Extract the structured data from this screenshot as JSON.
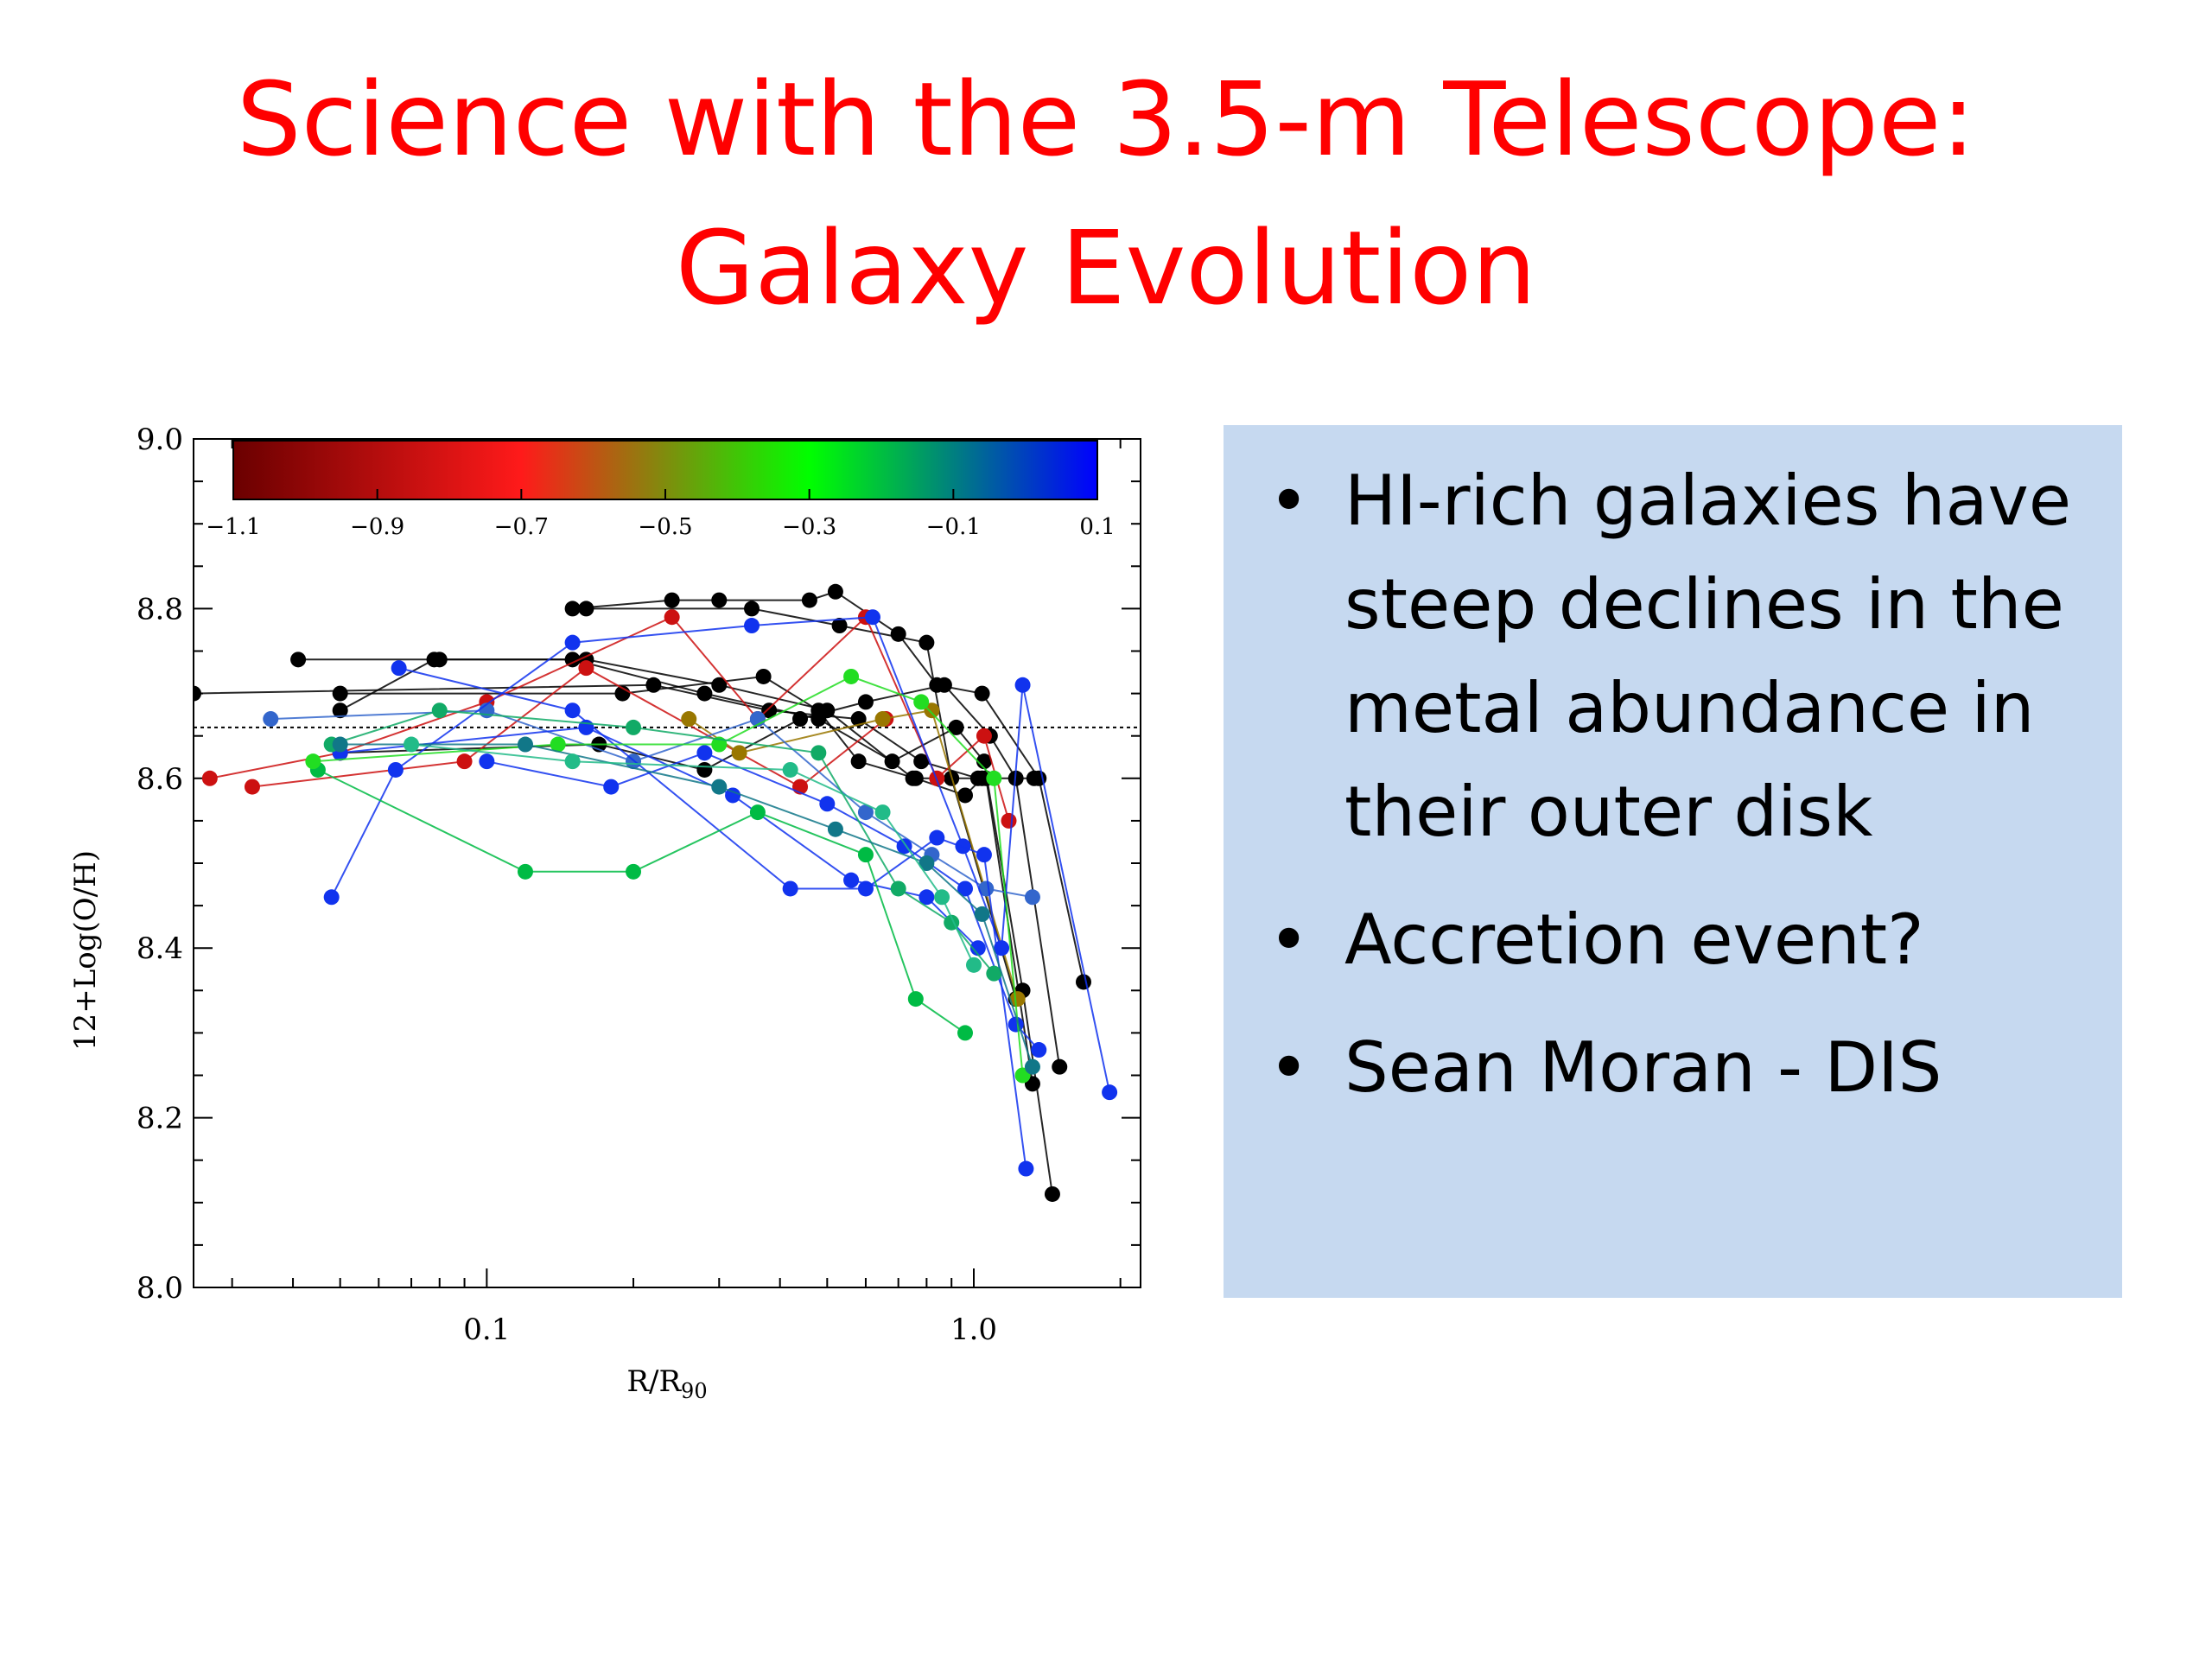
{
  "slide": {
    "title_line1": "Science with the 3.5-m Telescope:",
    "title_line2": "Galaxy Evolution",
    "bullets": [
      "HI-rich galaxies have steep declines in the metal abundance in their outer disk",
      "Accretion event?",
      "Sean Moran - DIS"
    ]
  },
  "chart_data": {
    "type": "scatter",
    "xlabel_main": "R/R",
    "xlabel_sub": "90",
    "ylabel": "12+Log(O/H)",
    "xscale": "log",
    "xlim": [
      0.025,
      2.2
    ],
    "ylim": [
      8.0,
      9.0
    ],
    "xticks": [
      {
        "value": 0.1,
        "label": "0.1"
      },
      {
        "value": 1.0,
        "label": "1.0"
      }
    ],
    "yticks": [
      {
        "value": 8.0,
        "label": "8.0"
      },
      {
        "value": 8.2,
        "label": "8.2"
      },
      {
        "value": 8.4,
        "label": "8.4"
      },
      {
        "value": 8.6,
        "label": "8.6"
      },
      {
        "value": 8.8,
        "label": "8.8"
      },
      {
        "value": 9.0,
        "label": "9.0"
      }
    ],
    "reference_line_y": 8.66,
    "colorbar": {
      "range": [
        -1.1,
        0.1
      ],
      "ticks": [
        "-1.1",
        "-0.9",
        "-0.7",
        "-0.5",
        "-0.3",
        "-0.1",
        "0.1"
      ],
      "stops": [
        "#6a0000",
        "#ff1a1a",
        "#00ff00",
        "#0000ff"
      ]
    },
    "series": [
      {
        "color": "#000000",
        "points": [
          [
            0.025,
            8.7
          ],
          [
            0.22,
            8.71
          ],
          [
            0.38,
            8.68
          ],
          [
            0.58,
            8.67
          ],
          [
            0.78,
            8.62
          ],
          [
            1.02,
            8.6
          ],
          [
            1.33,
            8.6
          ]
        ]
      },
      {
        "color": "#000000",
        "points": [
          [
            0.041,
            8.74
          ],
          [
            0.08,
            8.74
          ],
          [
            0.15,
            8.74
          ],
          [
            0.28,
            8.7
          ],
          [
            0.48,
            8.67
          ],
          [
            0.68,
            8.62
          ],
          [
            0.92,
            8.66
          ],
          [
            1.05,
            8.62
          ],
          [
            1.26,
            8.35
          ],
          [
            1.45,
            8.11
          ]
        ]
      },
      {
        "color": "#000000",
        "points": [
          [
            0.05,
            8.68
          ],
          [
            0.078,
            8.74
          ],
          [
            0.16,
            8.74
          ],
          [
            0.3,
            8.71
          ],
          [
            0.5,
            8.68
          ],
          [
            0.75,
            8.6
          ],
          [
            1.06,
            8.6
          ],
          [
            1.32,
            8.24
          ]
        ]
      },
      {
        "color": "#000000",
        "points": [
          [
            0.05,
            8.63
          ],
          [
            0.17,
            8.64
          ],
          [
            0.28,
            8.61
          ],
          [
            0.44,
            8.67
          ],
          [
            0.6,
            8.69
          ],
          [
            0.87,
            8.71
          ],
          [
            1.08,
            8.65
          ],
          [
            1.22,
            8.6
          ],
          [
            1.5,
            8.26
          ]
        ]
      },
      {
        "color": "#000000",
        "points": [
          [
            0.15,
            8.8
          ],
          [
            0.24,
            8.81
          ],
          [
            0.3,
            8.81
          ],
          [
            0.46,
            8.81
          ],
          [
            0.52,
            8.82
          ],
          [
            0.7,
            8.77
          ],
          [
            0.84,
            8.71
          ],
          [
            1.04,
            8.7
          ],
          [
            1.36,
            8.6
          ],
          [
            1.68,
            8.36
          ]
        ]
      },
      {
        "color": "#000000",
        "points": [
          [
            0.16,
            8.8
          ],
          [
            0.35,
            8.8
          ],
          [
            0.53,
            8.78
          ],
          [
            0.8,
            8.76
          ],
          [
            0.9,
            8.6
          ],
          [
            1.22,
            8.34
          ]
        ]
      },
      {
        "color": "#000000",
        "points": [
          [
            0.05,
            8.7
          ],
          [
            0.19,
            8.7
          ],
          [
            0.37,
            8.72
          ],
          [
            0.48,
            8.68
          ],
          [
            0.58,
            8.62
          ],
          [
            0.76,
            8.6
          ],
          [
            0.96,
            8.58
          ],
          [
            1.04,
            8.6
          ]
        ]
      },
      {
        "color": "#cc1111",
        "points": [
          [
            0.027,
            8.6
          ],
          [
            0.05,
            8.63
          ],
          [
            0.1,
            8.69
          ],
          [
            0.24,
            8.79
          ],
          [
            0.36,
            8.67
          ],
          [
            0.6,
            8.79
          ],
          [
            0.84,
            8.6
          ],
          [
            1.05,
            8.65
          ],
          [
            1.18,
            8.55
          ]
        ]
      },
      {
        "color": "#cc1111",
        "points": [
          [
            0.033,
            8.59
          ],
          [
            0.09,
            8.62
          ],
          [
            0.16,
            8.73
          ],
          [
            0.44,
            8.59
          ],
          [
            0.66,
            8.67
          ]
        ]
      },
      {
        "color": "#997700",
        "points": [
          [
            0.26,
            8.67
          ],
          [
            0.33,
            8.63
          ],
          [
            0.65,
            8.67
          ],
          [
            0.82,
            8.68
          ],
          [
            1.23,
            8.34
          ]
        ]
      },
      {
        "color": "#3366cc",
        "points": [
          [
            0.036,
            8.67
          ],
          [
            0.1,
            8.68
          ],
          [
            0.2,
            8.62
          ],
          [
            0.36,
            8.67
          ],
          [
            0.6,
            8.56
          ],
          [
            0.82,
            8.51
          ],
          [
            1.06,
            8.47
          ],
          [
            1.32,
            8.46
          ]
        ]
      },
      {
        "color": "#1133ee",
        "points": [
          [
            0.048,
            8.46
          ],
          [
            0.065,
            8.61
          ],
          [
            0.15,
            8.76
          ],
          [
            0.35,
            8.78
          ],
          [
            0.62,
            8.79
          ],
          [
            0.95,
            8.52
          ],
          [
            1.14,
            8.4
          ],
          [
            1.26,
            8.71
          ],
          [
            1.9,
            8.23
          ]
        ]
      },
      {
        "color": "#1133ee",
        "points": [
          [
            0.066,
            8.73
          ],
          [
            0.15,
            8.68
          ],
          [
            0.42,
            8.47
          ],
          [
            0.6,
            8.47
          ],
          [
            0.84,
            8.53
          ],
          [
            1.05,
            8.51
          ],
          [
            1.28,
            8.14
          ]
        ]
      },
      {
        "color": "#1133ee",
        "points": [
          [
            0.1,
            8.62
          ],
          [
            0.18,
            8.59
          ],
          [
            0.28,
            8.63
          ],
          [
            0.5,
            8.57
          ],
          [
            0.72,
            8.52
          ],
          [
            0.96,
            8.47
          ],
          [
            1.22,
            8.31
          ],
          [
            1.36,
            8.28
          ]
        ]
      },
      {
        "color": "#1133ee",
        "points": [
          [
            0.05,
            8.63
          ],
          [
            0.16,
            8.66
          ],
          [
            0.32,
            8.58
          ],
          [
            0.56,
            8.48
          ],
          [
            0.8,
            8.46
          ],
          [
            1.02,
            8.4
          ]
        ]
      },
      {
        "color": "#00bb44",
        "points": [
          [
            0.045,
            8.61
          ],
          [
            0.12,
            8.49
          ],
          [
            0.2,
            8.49
          ],
          [
            0.36,
            8.56
          ],
          [
            0.6,
            8.51
          ],
          [
            0.76,
            8.34
          ],
          [
            0.96,
            8.3
          ]
        ]
      },
      {
        "color": "#22dd22",
        "points": [
          [
            0.044,
            8.62
          ],
          [
            0.14,
            8.64
          ],
          [
            0.3,
            8.64
          ],
          [
            0.56,
            8.72
          ],
          [
            0.78,
            8.69
          ],
          [
            1.1,
            8.6
          ],
          [
            1.26,
            8.25
          ]
        ]
      },
      {
        "color": "#11aa66",
        "points": [
          [
            0.048,
            8.64
          ],
          [
            0.08,
            8.68
          ],
          [
            0.2,
            8.66
          ],
          [
            0.48,
            8.63
          ],
          [
            0.7,
            8.47
          ],
          [
            0.9,
            8.43
          ],
          [
            1.1,
            8.37
          ]
        ]
      },
      {
        "color": "#117788",
        "points": [
          [
            0.05,
            8.64
          ],
          [
            0.12,
            8.64
          ],
          [
            0.3,
            8.59
          ],
          [
            0.52,
            8.54
          ],
          [
            0.8,
            8.5
          ],
          [
            1.04,
            8.44
          ],
          [
            1.32,
            8.26
          ]
        ]
      },
      {
        "color": "#22bb88",
        "points": [
          [
            0.07,
            8.64
          ],
          [
            0.15,
            8.62
          ],
          [
            0.42,
            8.61
          ],
          [
            0.65,
            8.56
          ],
          [
            0.86,
            8.46
          ],
          [
            1.0,
            8.38
          ]
        ]
      }
    ]
  }
}
